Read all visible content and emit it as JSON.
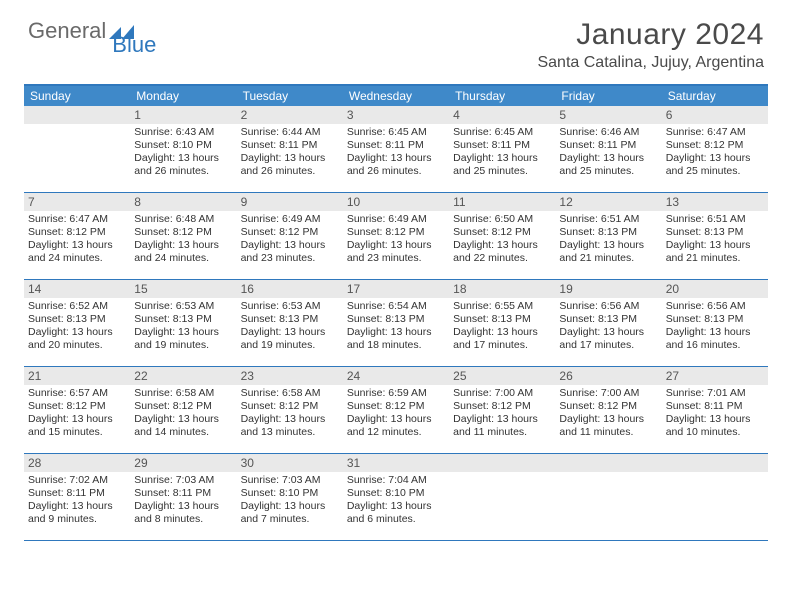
{
  "brand": {
    "part1": "General",
    "part2": "Blue"
  },
  "title": "January 2024",
  "location": "Santa Catalina, Jujuy, Argentina",
  "colors": {
    "accent": "#2f78bd",
    "header_bg": "#3f89c9",
    "daynum_bg": "#e9e9e9",
    "text": "#333333"
  },
  "day_headers": [
    "Sunday",
    "Monday",
    "Tuesday",
    "Wednesday",
    "Thursday",
    "Friday",
    "Saturday"
  ],
  "weeks": [
    [
      {
        "num": "",
        "sunrise": "",
        "sunset": "",
        "daylight1": "",
        "daylight2": ""
      },
      {
        "num": "1",
        "sunrise": "Sunrise: 6:43 AM",
        "sunset": "Sunset: 8:10 PM",
        "daylight1": "Daylight: 13 hours",
        "daylight2": "and 26 minutes."
      },
      {
        "num": "2",
        "sunrise": "Sunrise: 6:44 AM",
        "sunset": "Sunset: 8:11 PM",
        "daylight1": "Daylight: 13 hours",
        "daylight2": "and 26 minutes."
      },
      {
        "num": "3",
        "sunrise": "Sunrise: 6:45 AM",
        "sunset": "Sunset: 8:11 PM",
        "daylight1": "Daylight: 13 hours",
        "daylight2": "and 26 minutes."
      },
      {
        "num": "4",
        "sunrise": "Sunrise: 6:45 AM",
        "sunset": "Sunset: 8:11 PM",
        "daylight1": "Daylight: 13 hours",
        "daylight2": "and 25 minutes."
      },
      {
        "num": "5",
        "sunrise": "Sunrise: 6:46 AM",
        "sunset": "Sunset: 8:11 PM",
        "daylight1": "Daylight: 13 hours",
        "daylight2": "and 25 minutes."
      },
      {
        "num": "6",
        "sunrise": "Sunrise: 6:47 AM",
        "sunset": "Sunset: 8:12 PM",
        "daylight1": "Daylight: 13 hours",
        "daylight2": "and 25 minutes."
      }
    ],
    [
      {
        "num": "7",
        "sunrise": "Sunrise: 6:47 AM",
        "sunset": "Sunset: 8:12 PM",
        "daylight1": "Daylight: 13 hours",
        "daylight2": "and 24 minutes."
      },
      {
        "num": "8",
        "sunrise": "Sunrise: 6:48 AM",
        "sunset": "Sunset: 8:12 PM",
        "daylight1": "Daylight: 13 hours",
        "daylight2": "and 24 minutes."
      },
      {
        "num": "9",
        "sunrise": "Sunrise: 6:49 AM",
        "sunset": "Sunset: 8:12 PM",
        "daylight1": "Daylight: 13 hours",
        "daylight2": "and 23 minutes."
      },
      {
        "num": "10",
        "sunrise": "Sunrise: 6:49 AM",
        "sunset": "Sunset: 8:12 PM",
        "daylight1": "Daylight: 13 hours",
        "daylight2": "and 23 minutes."
      },
      {
        "num": "11",
        "sunrise": "Sunrise: 6:50 AM",
        "sunset": "Sunset: 8:12 PM",
        "daylight1": "Daylight: 13 hours",
        "daylight2": "and 22 minutes."
      },
      {
        "num": "12",
        "sunrise": "Sunrise: 6:51 AM",
        "sunset": "Sunset: 8:13 PM",
        "daylight1": "Daylight: 13 hours",
        "daylight2": "and 21 minutes."
      },
      {
        "num": "13",
        "sunrise": "Sunrise: 6:51 AM",
        "sunset": "Sunset: 8:13 PM",
        "daylight1": "Daylight: 13 hours",
        "daylight2": "and 21 minutes."
      }
    ],
    [
      {
        "num": "14",
        "sunrise": "Sunrise: 6:52 AM",
        "sunset": "Sunset: 8:13 PM",
        "daylight1": "Daylight: 13 hours",
        "daylight2": "and 20 minutes."
      },
      {
        "num": "15",
        "sunrise": "Sunrise: 6:53 AM",
        "sunset": "Sunset: 8:13 PM",
        "daylight1": "Daylight: 13 hours",
        "daylight2": "and 19 minutes."
      },
      {
        "num": "16",
        "sunrise": "Sunrise: 6:53 AM",
        "sunset": "Sunset: 8:13 PM",
        "daylight1": "Daylight: 13 hours",
        "daylight2": "and 19 minutes."
      },
      {
        "num": "17",
        "sunrise": "Sunrise: 6:54 AM",
        "sunset": "Sunset: 8:13 PM",
        "daylight1": "Daylight: 13 hours",
        "daylight2": "and 18 minutes."
      },
      {
        "num": "18",
        "sunrise": "Sunrise: 6:55 AM",
        "sunset": "Sunset: 8:13 PM",
        "daylight1": "Daylight: 13 hours",
        "daylight2": "and 17 minutes."
      },
      {
        "num": "19",
        "sunrise": "Sunrise: 6:56 AM",
        "sunset": "Sunset: 8:13 PM",
        "daylight1": "Daylight: 13 hours",
        "daylight2": "and 17 minutes."
      },
      {
        "num": "20",
        "sunrise": "Sunrise: 6:56 AM",
        "sunset": "Sunset: 8:13 PM",
        "daylight1": "Daylight: 13 hours",
        "daylight2": "and 16 minutes."
      }
    ],
    [
      {
        "num": "21",
        "sunrise": "Sunrise: 6:57 AM",
        "sunset": "Sunset: 8:12 PM",
        "daylight1": "Daylight: 13 hours",
        "daylight2": "and 15 minutes."
      },
      {
        "num": "22",
        "sunrise": "Sunrise: 6:58 AM",
        "sunset": "Sunset: 8:12 PM",
        "daylight1": "Daylight: 13 hours",
        "daylight2": "and 14 minutes."
      },
      {
        "num": "23",
        "sunrise": "Sunrise: 6:58 AM",
        "sunset": "Sunset: 8:12 PM",
        "daylight1": "Daylight: 13 hours",
        "daylight2": "and 13 minutes."
      },
      {
        "num": "24",
        "sunrise": "Sunrise: 6:59 AM",
        "sunset": "Sunset: 8:12 PM",
        "daylight1": "Daylight: 13 hours",
        "daylight2": "and 12 minutes."
      },
      {
        "num": "25",
        "sunrise": "Sunrise: 7:00 AM",
        "sunset": "Sunset: 8:12 PM",
        "daylight1": "Daylight: 13 hours",
        "daylight2": "and 11 minutes."
      },
      {
        "num": "26",
        "sunrise": "Sunrise: 7:00 AM",
        "sunset": "Sunset: 8:12 PM",
        "daylight1": "Daylight: 13 hours",
        "daylight2": "and 11 minutes."
      },
      {
        "num": "27",
        "sunrise": "Sunrise: 7:01 AM",
        "sunset": "Sunset: 8:11 PM",
        "daylight1": "Daylight: 13 hours",
        "daylight2": "and 10 minutes."
      }
    ],
    [
      {
        "num": "28",
        "sunrise": "Sunrise: 7:02 AM",
        "sunset": "Sunset: 8:11 PM",
        "daylight1": "Daylight: 13 hours",
        "daylight2": "and 9 minutes."
      },
      {
        "num": "29",
        "sunrise": "Sunrise: 7:03 AM",
        "sunset": "Sunset: 8:11 PM",
        "daylight1": "Daylight: 13 hours",
        "daylight2": "and 8 minutes."
      },
      {
        "num": "30",
        "sunrise": "Sunrise: 7:03 AM",
        "sunset": "Sunset: 8:10 PM",
        "daylight1": "Daylight: 13 hours",
        "daylight2": "and 7 minutes."
      },
      {
        "num": "31",
        "sunrise": "Sunrise: 7:04 AM",
        "sunset": "Sunset: 8:10 PM",
        "daylight1": "Daylight: 13 hours",
        "daylight2": "and 6 minutes."
      },
      {
        "num": "",
        "sunrise": "",
        "sunset": "",
        "daylight1": "",
        "daylight2": ""
      },
      {
        "num": "",
        "sunrise": "",
        "sunset": "",
        "daylight1": "",
        "daylight2": ""
      },
      {
        "num": "",
        "sunrise": "",
        "sunset": "",
        "daylight1": "",
        "daylight2": ""
      }
    ]
  ]
}
